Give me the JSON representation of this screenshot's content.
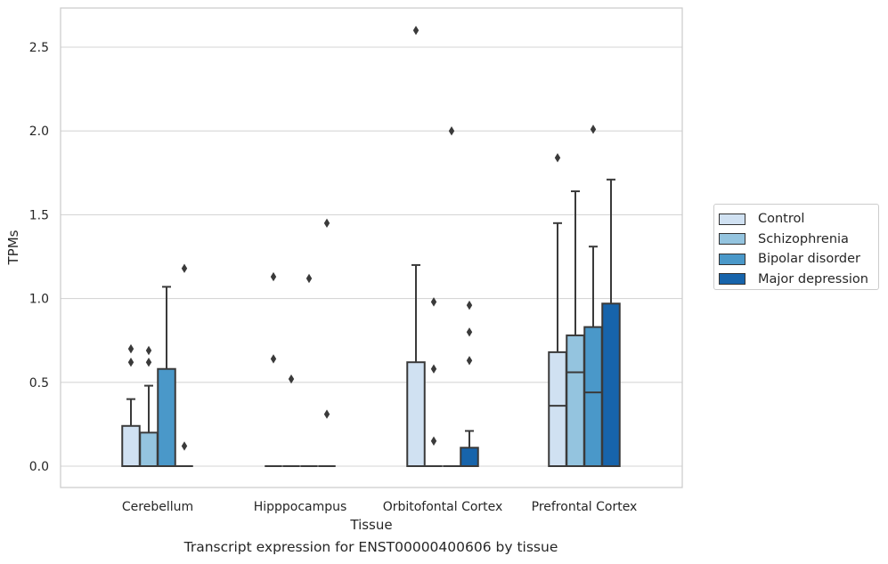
{
  "chart_data": {
    "type": "box",
    "caption": "Transcript expression for ENST00000400606 by tissue",
    "xlabel": "Tissue",
    "ylabel": "TPMs",
    "ylim": [
      -0.125,
      2.75
    ],
    "yticks": [
      "0.0",
      "0.5",
      "1.0",
      "1.5",
      "2.0",
      "2.5"
    ],
    "grid": true,
    "legend_position": "right",
    "categories": [
      "Cerebellum",
      "Hipppocampus",
      "Orbitofontal Cortex",
      "Prefrontal Cortex"
    ],
    "series": [
      {
        "name": "Control",
        "color": "#d0e1f2",
        "boxes": [
          {
            "q1": 0.0,
            "median": 0.0,
            "q3": 0.24,
            "whisker_low": 0.0,
            "whisker_high": 0.4,
            "outliers": [
              0.62,
              0.7
            ]
          },
          {
            "q1": 0.0,
            "median": 0.0,
            "q3": 0.0,
            "whisker_low": 0.0,
            "whisker_high": 0.0,
            "outliers": [
              0.64,
              1.13
            ]
          },
          {
            "q1": 0.0,
            "median": 0.0,
            "q3": 0.62,
            "whisker_low": 0.0,
            "whisker_high": 1.2,
            "outliers": [
              2.6
            ]
          },
          {
            "q1": 0.0,
            "median": 0.36,
            "q3": 0.68,
            "whisker_low": 0.0,
            "whisker_high": 1.45,
            "outliers": [
              1.84
            ]
          }
        ]
      },
      {
        "name": "Schizophrenia",
        "color": "#94c4df",
        "boxes": [
          {
            "q1": 0.0,
            "median": 0.0,
            "q3": 0.2,
            "whisker_low": 0.0,
            "whisker_high": 0.48,
            "outliers": [
              0.62,
              0.69
            ]
          },
          {
            "q1": 0.0,
            "median": 0.0,
            "q3": 0.0,
            "whisker_low": 0.0,
            "whisker_high": 0.0,
            "outliers": [
              0.52
            ]
          },
          {
            "q1": 0.0,
            "median": 0.0,
            "q3": 0.0,
            "whisker_low": 0.0,
            "whisker_high": 0.0,
            "outliers": [
              0.15,
              0.58,
              0.98
            ]
          },
          {
            "q1": 0.0,
            "median": 0.56,
            "q3": 0.78,
            "whisker_low": 0.0,
            "whisker_high": 1.64,
            "outliers": []
          }
        ]
      },
      {
        "name": "Bipolar disorder",
        "color": "#4a98c9",
        "boxes": [
          {
            "q1": 0.0,
            "median": 0.0,
            "q3": 0.58,
            "whisker_low": 0.0,
            "whisker_high": 1.07,
            "outliers": []
          },
          {
            "q1": 0.0,
            "median": 0.0,
            "q3": 0.0,
            "whisker_low": 0.0,
            "whisker_high": 0.0,
            "outliers": [
              1.12
            ]
          },
          {
            "q1": 0.0,
            "median": 0.0,
            "q3": 0.0,
            "whisker_low": 0.0,
            "whisker_high": 0.0,
            "outliers": [
              2.0
            ]
          },
          {
            "q1": 0.0,
            "median": 0.44,
            "q3": 0.83,
            "whisker_low": 0.0,
            "whisker_high": 1.31,
            "outliers": [
              2.01
            ]
          }
        ]
      },
      {
        "name": "Major depression",
        "color": "#1764ab",
        "boxes": [
          {
            "q1": 0.0,
            "median": 0.0,
            "q3": 0.0,
            "whisker_low": 0.0,
            "whisker_high": 0.0,
            "outliers": [
              0.12,
              1.18
            ]
          },
          {
            "q1": 0.0,
            "median": 0.0,
            "q3": 0.0,
            "whisker_low": 0.0,
            "whisker_high": 0.0,
            "outliers": [
              0.31,
              1.45
            ]
          },
          {
            "q1": 0.0,
            "median": 0.0,
            "q3": 0.11,
            "whisker_low": 0.0,
            "whisker_high": 0.21,
            "outliers": [
              0.63,
              0.8,
              0.96
            ]
          },
          {
            "q1": 0.0,
            "median": 0.0,
            "q3": 0.97,
            "whisker_low": 0.0,
            "whisker_high": 1.71,
            "outliers": []
          }
        ]
      }
    ]
  }
}
